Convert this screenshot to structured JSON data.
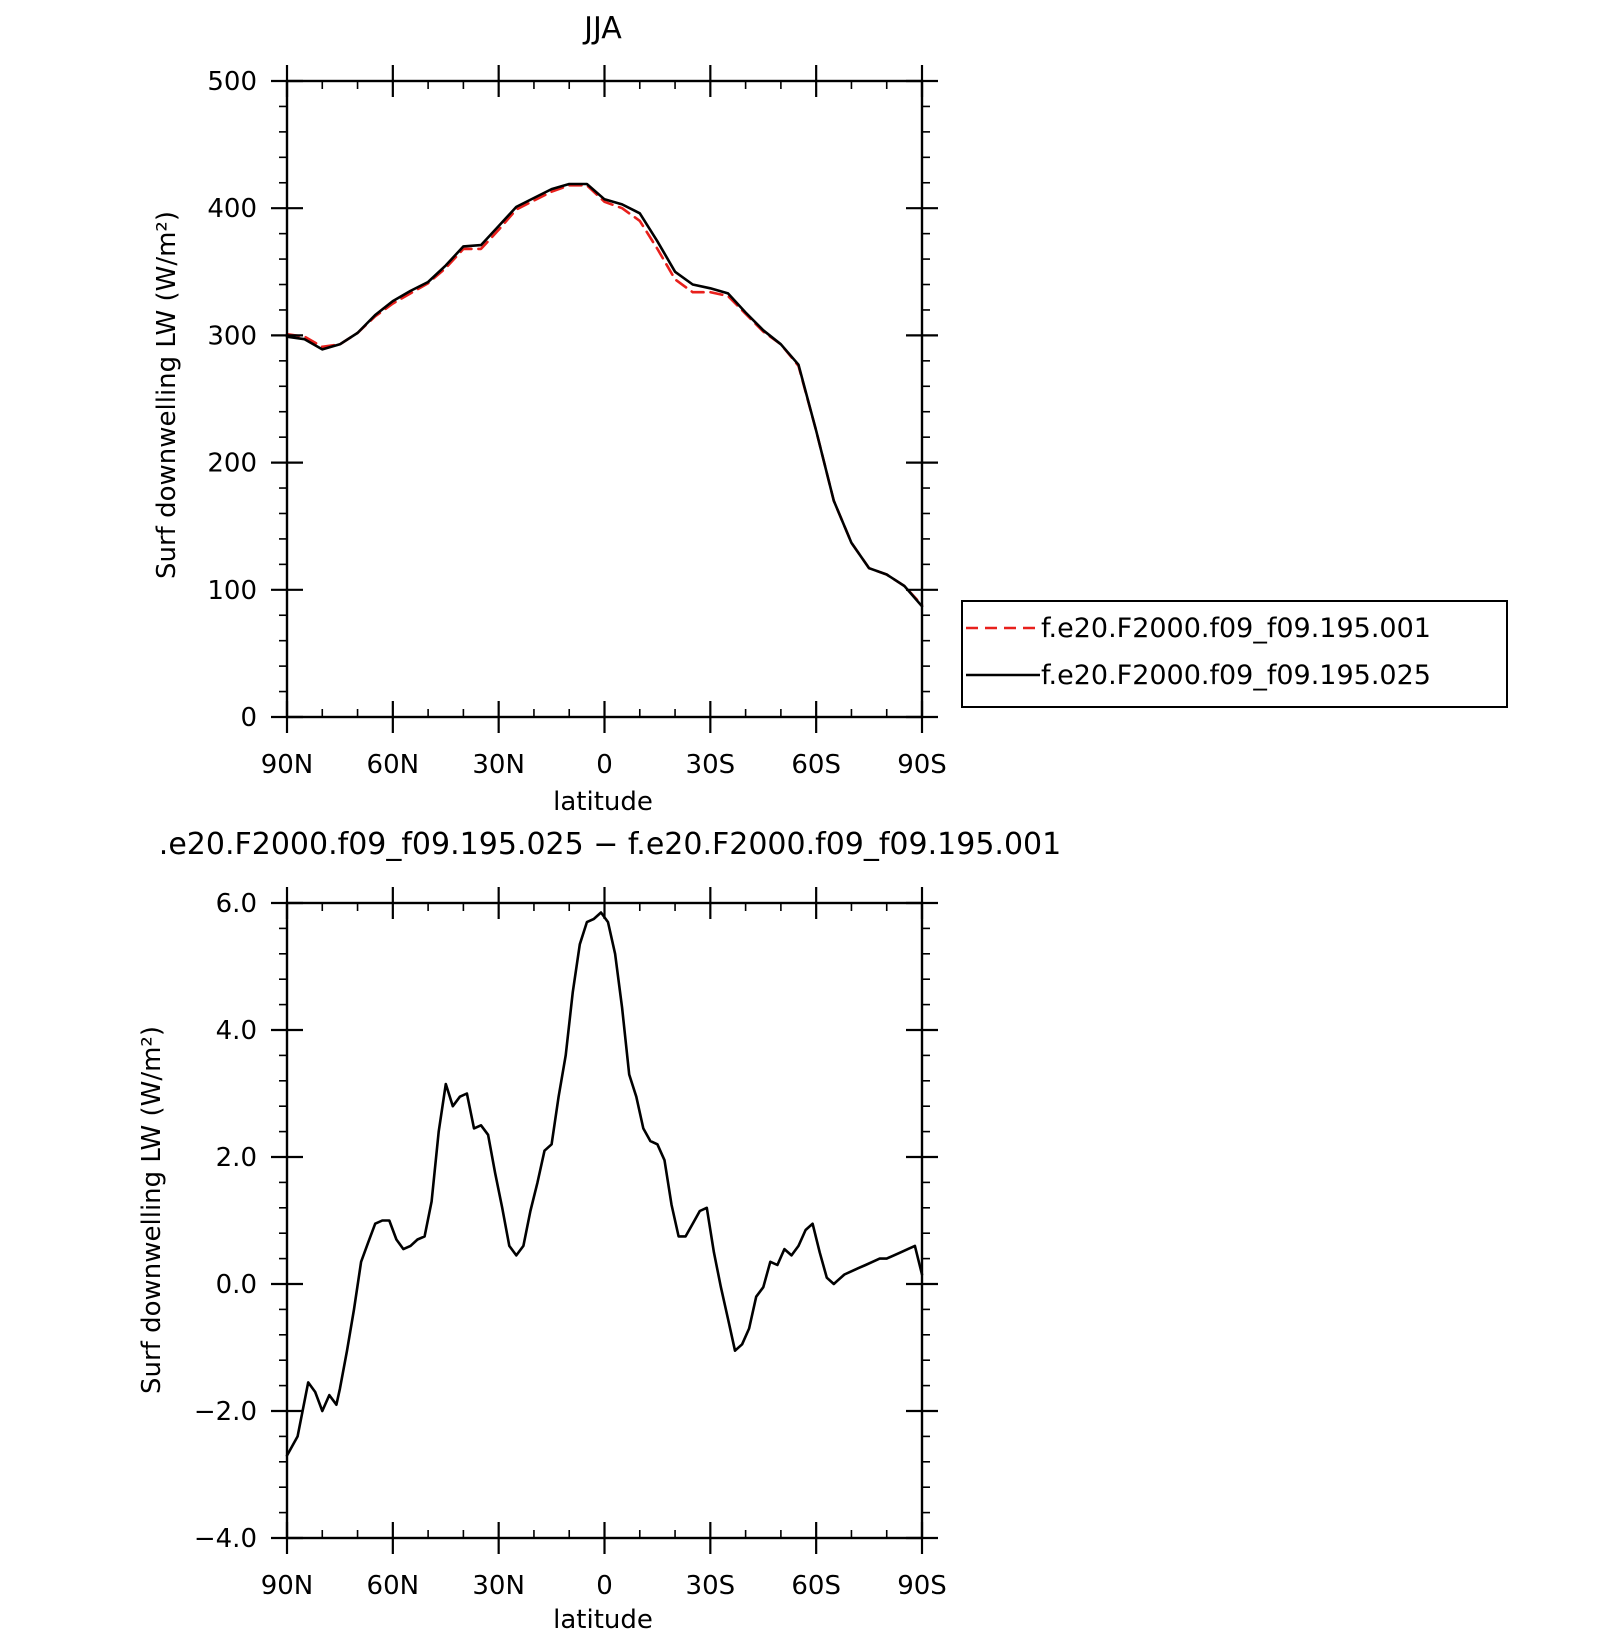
{
  "chart_data": [
    {
      "type": "line",
      "title": "JJA",
      "xlabel": "latitude",
      "ylabel": "Surf downwelling LW (W/m²)",
      "xlim": [
        90,
        -90
      ],
      "ylim": [
        0,
        500
      ],
      "xticks": [
        90,
        60,
        30,
        0,
        -30,
        -60,
        -90
      ],
      "xtick_labels": [
        "90N",
        "60N",
        "30N",
        "0",
        "30S",
        "60S",
        "90S"
      ],
      "yticks": [
        0,
        100,
        200,
        300,
        400,
        500
      ],
      "ytick_labels": [
        "0",
        "100",
        "200",
        "300",
        "400",
        "500"
      ],
      "grid": false,
      "legend": "right",
      "series": [
        {
          "name": "f.e20.F2000.f09_f09.195.001",
          "color": "#e8201c",
          "dash": "dashed",
          "x": [
            90,
            85,
            80,
            75,
            70,
            65,
            60,
            55,
            50,
            45,
            40,
            35,
            30,
            25,
            20,
            15,
            10,
            5,
            0,
            -5,
            -10,
            -15,
            -20,
            -25,
            -30,
            -35,
            -40,
            -45,
            -50,
            -55,
            -60,
            -65,
            -70,
            -75,
            -80,
            -85,
            -90
          ],
          "y": [
            301,
            299,
            291,
            293,
            302,
            315,
            325,
            333,
            341,
            353,
            368,
            368,
            383,
            399,
            406,
            413,
            418,
            418,
            405,
            400,
            390,
            368,
            344,
            334,
            334,
            331,
            317,
            303,
            293,
            276,
            225,
            170,
            137,
            117,
            112,
            103,
            88
          ]
        },
        {
          "name": "f.e20.F2000.f09_f09.195.025",
          "color": "#000000",
          "dash": "solid",
          "x": [
            90,
            85,
            80,
            75,
            70,
            65,
            60,
            55,
            50,
            45,
            40,
            35,
            30,
            25,
            20,
            15,
            10,
            5,
            0,
            -5,
            -10,
            -15,
            -20,
            -25,
            -30,
            -35,
            -40,
            -45,
            -50,
            -55,
            -60,
            -65,
            -70,
            -75,
            -80,
            -85,
            -90
          ],
          "y": [
            299,
            297,
            289,
            293,
            302,
            316,
            327,
            335,
            342,
            355,
            370,
            371,
            386,
            401,
            408,
            415,
            419,
            419,
            407,
            403,
            396,
            374,
            350,
            340,
            337,
            333,
            318,
            304,
            293,
            277,
            225,
            170,
            137,
            117,
            112,
            103,
            87
          ]
        }
      ]
    },
    {
      "type": "line",
      "title": ".e20.F2000.f09_f09.195.025 − f.e20.F2000.f09_f09.195.001",
      "xlabel": "latitude",
      "ylabel": "Surf downwelling LW (W/m²)",
      "xlim": [
        90,
        -90
      ],
      "ylim": [
        -4,
        6
      ],
      "xticks": [
        90,
        60,
        30,
        0,
        -30,
        -60,
        -90
      ],
      "xtick_labels": [
        "90N",
        "60N",
        "30N",
        "0",
        "30S",
        "60S",
        "90S"
      ],
      "yticks": [
        -4,
        -2,
        0,
        2,
        4,
        6
      ],
      "ytick_labels": [
        "−4.0",
        "−2.0",
        "0.0",
        "2.0",
        "4.0",
        "6.0"
      ],
      "grid": false,
      "series": [
        {
          "color": "#000000",
          "x": [
            90,
            87,
            84,
            82,
            80,
            78,
            76,
            75,
            73,
            71,
            69,
            67,
            65,
            63,
            61,
            59,
            57,
            55,
            53,
            51,
            49,
            47,
            45,
            43,
            41,
            39,
            37,
            35,
            33,
            31,
            29,
            27,
            25,
            23,
            21,
            19,
            17,
            15,
            13,
            11,
            9,
            7,
            5,
            3,
            1,
            -1,
            -3,
            -5,
            -7,
            -9,
            -11,
            -13,
            -15,
            -17,
            -19,
            -21,
            -23,
            -25,
            -27,
            -29,
            -31,
            -33,
            -35,
            -37,
            -39,
            -41,
            -43,
            -45,
            -47,
            -49,
            -51,
            -53,
            -55,
            -57,
            -59,
            -61,
            -63,
            -65,
            -66,
            -68,
            -70,
            -72,
            -74,
            -76,
            -78,
            -80,
            -82,
            -84,
            -86,
            -88,
            -90
          ],
          "y": [
            -2.7,
            -2.4,
            -1.55,
            -1.7,
            -2.0,
            -1.75,
            -1.9,
            -1.65,
            -1.05,
            -0.4,
            0.35,
            0.65,
            0.95,
            1.0,
            1.0,
            0.7,
            0.55,
            0.6,
            0.7,
            0.75,
            1.3,
            2.4,
            3.15,
            2.8,
            2.95,
            3.0,
            2.45,
            2.5,
            2.35,
            1.75,
            1.2,
            0.6,
            0.45,
            0.6,
            1.15,
            1.6,
            2.1,
            2.2,
            2.95,
            3.6,
            4.6,
            5.35,
            5.7,
            5.75,
            5.85,
            5.7,
            5.2,
            4.35,
            3.3,
            2.95,
            2.45,
            2.25,
            2.2,
            1.95,
            1.25,
            0.75,
            0.75,
            0.95,
            1.15,
            1.2,
            0.5,
            -0.05,
            -0.55,
            -1.05,
            -0.95,
            -0.7,
            -0.2,
            -0.05,
            0.35,
            0.3,
            0.55,
            0.45,
            0.6,
            0.85,
            0.95,
            0.5,
            0.1,
            0.0,
            0.05,
            0.15,
            0.2,
            0.25,
            0.3,
            0.35,
            0.4,
            0.4,
            0.45,
            0.5,
            0.55,
            0.6,
            0.15
          ]
        }
      ]
    }
  ]
}
